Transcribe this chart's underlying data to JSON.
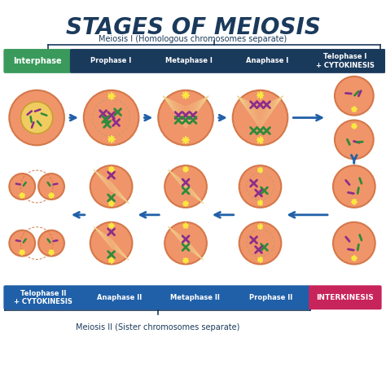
{
  "title": "STAGES OF MEIOSIS",
  "title_color": "#1a3a5c",
  "title_fontsize": 20,
  "bg_color": "#ffffff",
  "meiosis1_label": "Meiosis I (Homologous chromosomes separate)",
  "meiosis2_label": "Meiosis II (Sister chromosomes separate)",
  "top_bar_green": "#3a9a5c",
  "top_bar_dark": "#1a3a5c",
  "bottom_bar_blue": "#2060a8",
  "interkinesis_color": "#c8245c",
  "cell_fill": "#f0956a",
  "cell_outline": "#d4784a",
  "cell_inner_fill": "#f5b090",
  "arrow_color": "#2060a8",
  "chrom_purple": "#8b2d8b",
  "chrom_green": "#2d8b3a",
  "spindle_color": "#f0d890",
  "nucleus_yellow": "#f0cc60",
  "nucleus_outline": "#c8a030",
  "star_color": "#f8e840",
  "brace_color": "#1a3a5c"
}
